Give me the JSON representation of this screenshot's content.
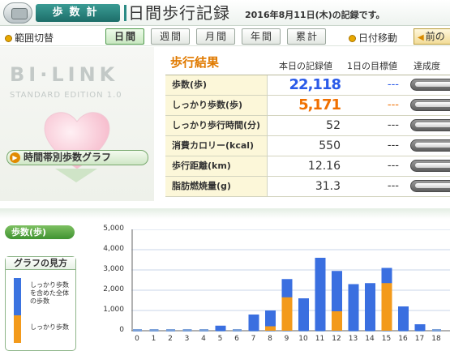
{
  "header": {
    "app_name": "歩数計",
    "page_title": "日間歩行記録",
    "record_date_text": "2016年8月11日(木)の記録です。"
  },
  "nav": {
    "range_label": "範囲切替",
    "buttons": [
      "日間",
      "週間",
      "月間",
      "年間",
      "累計"
    ],
    "selected": "日間",
    "date_move_label": "日付移動",
    "prev_label": "前の"
  },
  "brand": {
    "logo": "BI·LINK",
    "edition": "STANDARD EDITION 1.0",
    "graph_button": "時間帯別歩数グラフ"
  },
  "results": {
    "title": "歩行結果",
    "col_today": "本日の記録値",
    "col_goal": "1日の目標値",
    "col_rate": "達成度",
    "rows": [
      {
        "label": "歩数(歩)",
        "value": "22,118",
        "goal": "---",
        "value_color": "#2a5ae8",
        "goal_color": "#2a5ae8"
      },
      {
        "label": "しっかり歩数(歩)",
        "value": "5,171",
        "goal": "---",
        "value_color": "#f07000",
        "goal_color": "#f07000"
      },
      {
        "label": "しっかり歩行時間(分)",
        "value": "52",
        "goal": "---",
        "value_color": "#333333",
        "goal_color": "#333333"
      },
      {
        "label": "消費カロリー(kcal)",
        "value": "550",
        "goal": "---",
        "value_color": "#333333",
        "goal_color": "#333333"
      },
      {
        "label": "歩行距離(km)",
        "value": "12.16",
        "goal": "---",
        "value_color": "#333333",
        "goal_color": "#333333"
      },
      {
        "label": "脂肪燃焼量(g)",
        "value": "31.3",
        "goal": "---",
        "value_color": "#333333",
        "goal_color": "#333333"
      }
    ]
  },
  "lower": {
    "steps_badge": "歩数(歩)",
    "guide_title": "グラフの見方",
    "guide_total": "しっかり歩数を含めた全体の歩数",
    "guide_firm": "しっかり歩数"
  },
  "chart_data": {
    "type": "bar",
    "categories": [
      "0",
      "1",
      "2",
      "3",
      "4",
      "5",
      "6",
      "7",
      "8",
      "9",
      "10",
      "11",
      "12",
      "13",
      "14",
      "15",
      "16",
      "17",
      "18"
    ],
    "series": [
      {
        "name": "歩数",
        "color": "#3a6fe0",
        "values": [
          0,
          0,
          0,
          0,
          0,
          250,
          0,
          800,
          1000,
          2550,
          1600,
          3600,
          2950,
          2300,
          2350,
          3100,
          1200,
          320,
          0
        ]
      },
      {
        "name": "しっかり歩数",
        "color": "#f39a1b",
        "values": [
          0,
          0,
          0,
          0,
          0,
          0,
          0,
          0,
          220,
          1650,
          0,
          0,
          960,
          0,
          0,
          2350,
          0,
          0,
          0
        ]
      }
    ],
    "yticks": [
      "5,000",
      "4,000",
      "3,000",
      "2,000",
      "1,000",
      "0"
    ],
    "ylim": [
      0,
      5000
    ],
    "grid": true
  }
}
